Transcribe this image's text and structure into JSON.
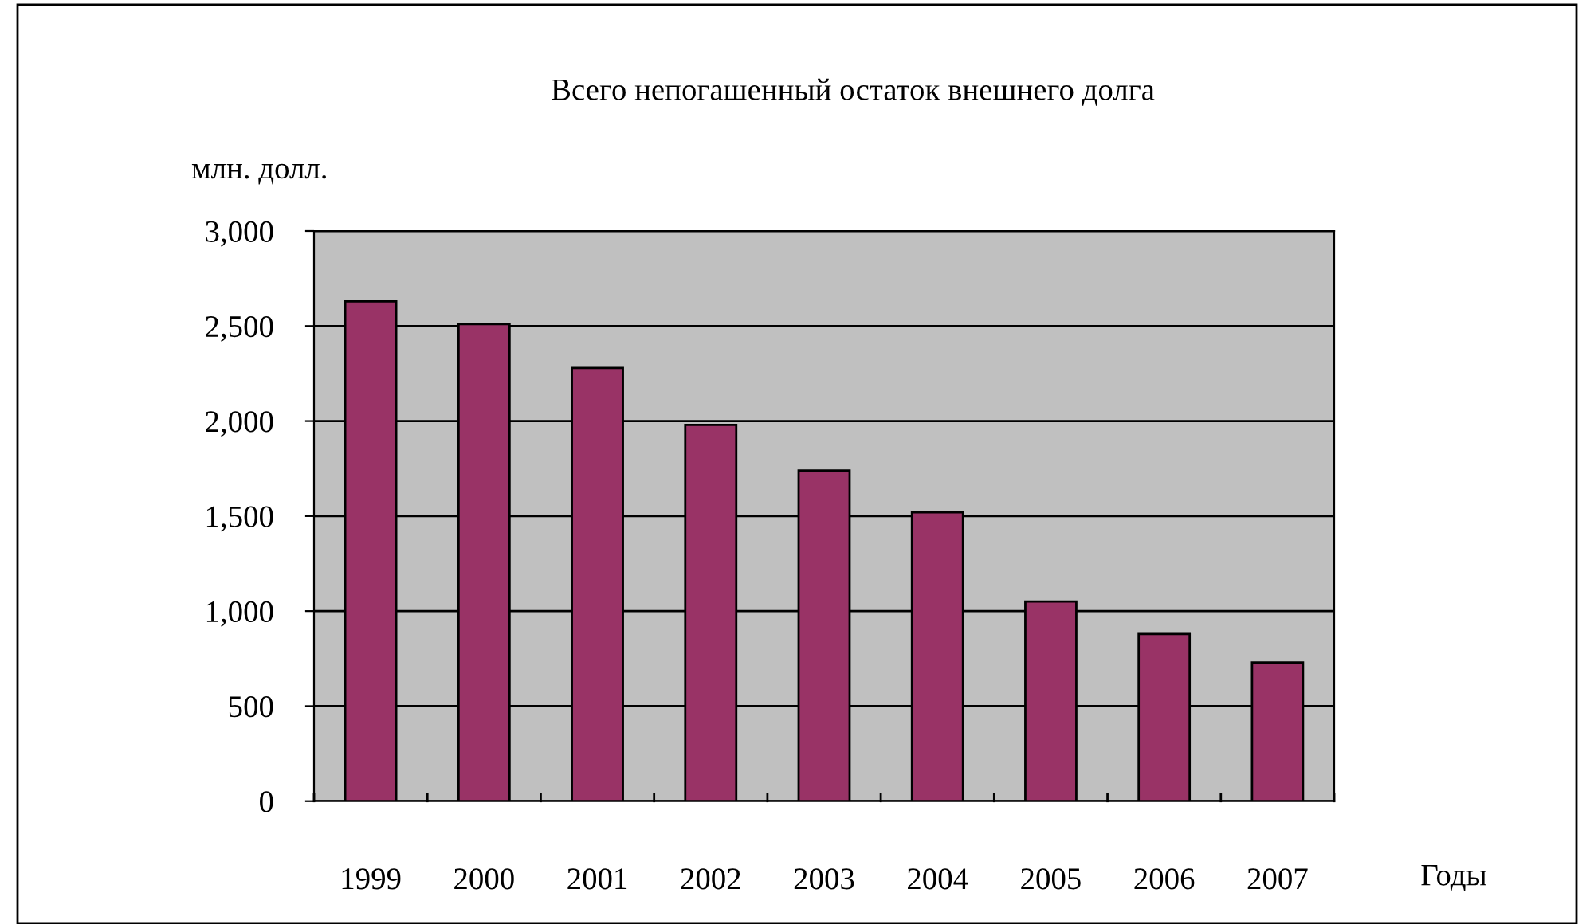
{
  "chart_data": {
    "type": "bar",
    "title": "Всего непогашенный остаток внешнего долга",
    "ylabel": "млн. долл.",
    "xlabel": "Годы",
    "categories": [
      "1999",
      "2000",
      "2001",
      "2002",
      "2003",
      "2004",
      "2005",
      "2006",
      "2007"
    ],
    "values": [
      2630,
      2510,
      2280,
      1980,
      1740,
      1520,
      1050,
      880,
      730
    ],
    "color": "#993366",
    "ylim": [
      0,
      3000
    ],
    "yticks": [
      {
        "value": 0,
        "label": "0"
      },
      {
        "value": 500,
        "label": "500"
      },
      {
        "value": 1000,
        "label": "1,000"
      },
      {
        "value": 1500,
        "label": "1,500"
      },
      {
        "value": 2000,
        "label": "2,000"
      },
      {
        "value": 2500,
        "label": "2,500"
      },
      {
        "value": 3000,
        "label": "3,000"
      }
    ],
    "grid": "y",
    "legend": false
  }
}
